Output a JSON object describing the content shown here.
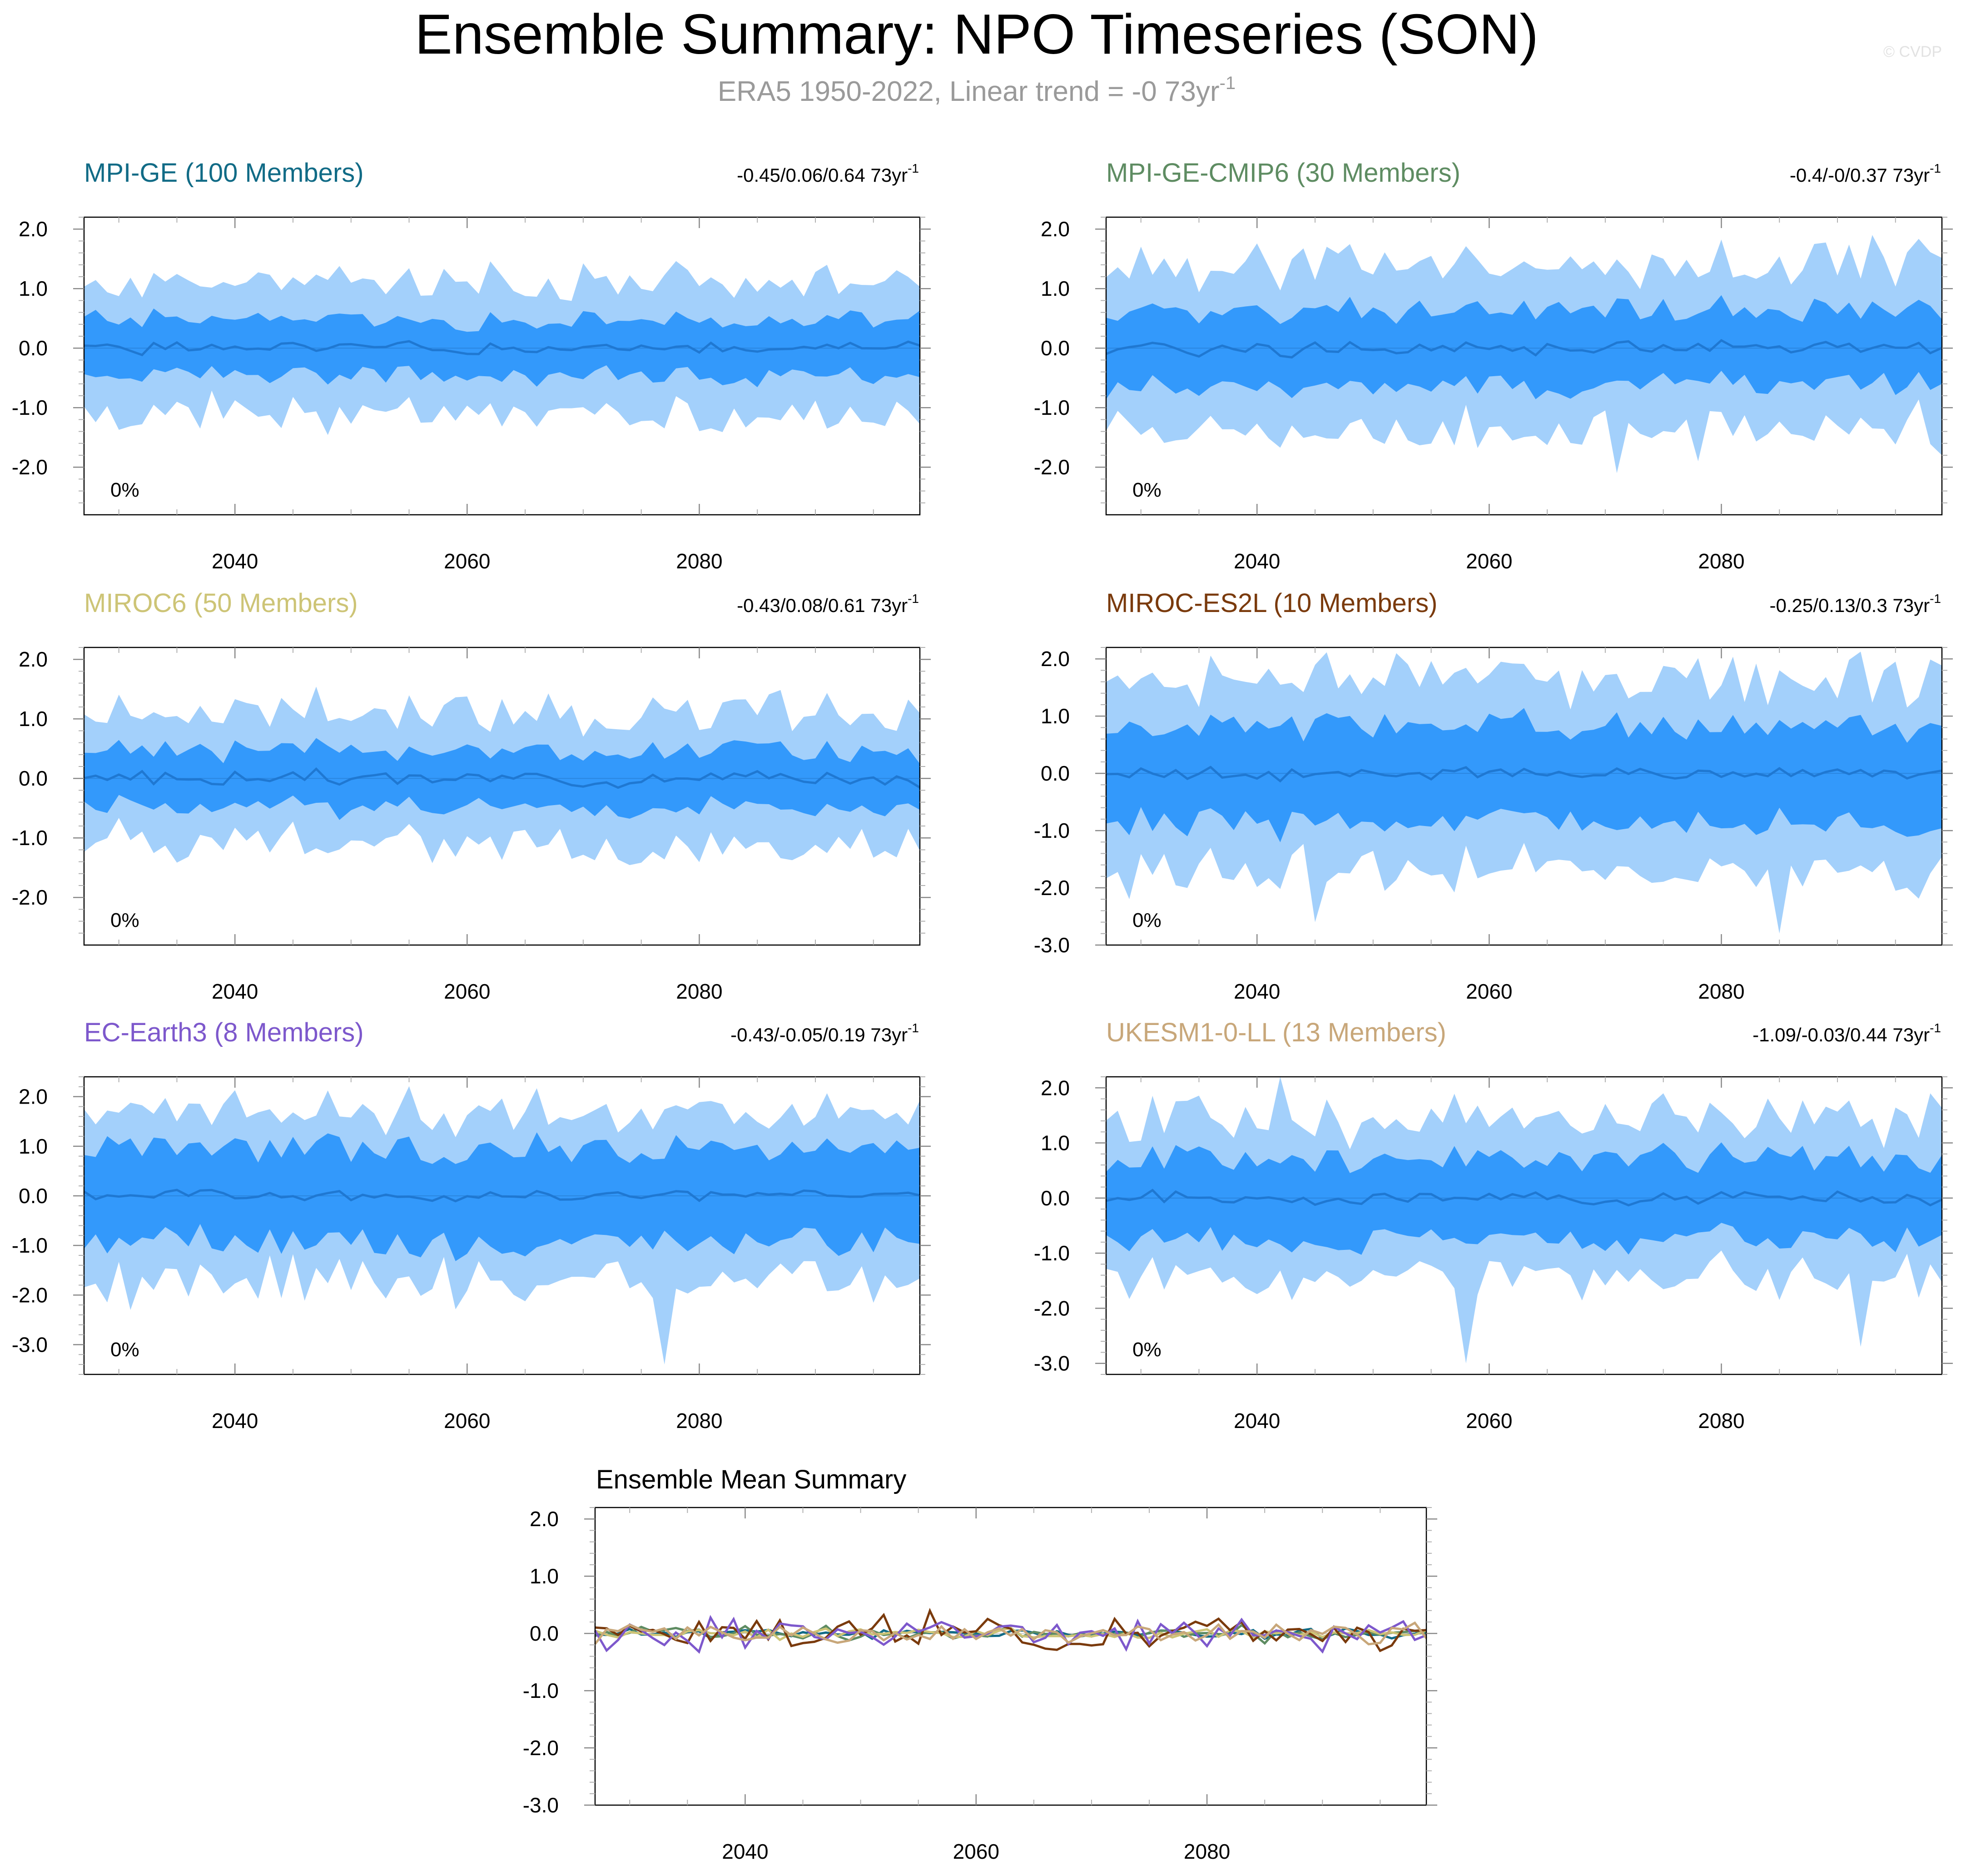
{
  "header": {
    "title": "Ensemble Summary: NPO Timeseries (SON)",
    "subtitle": "ERA5 1950-2022, Linear trend = -0 73yr",
    "subtitle_sup": "-1",
    "watermark": "© CVDP"
  },
  "colors": {
    "band_outer": "#a3d0fb",
    "band_inner": "#3399fb",
    "mean_line": "#1f78d2",
    "frame": "#000000",
    "minor_tick": "#b0b0b0"
  },
  "chart_data": [
    {
      "type": "area",
      "panel_title": "MPI-GE (100 Members)",
      "title_color": "#116b86",
      "trend_text": "-0.45/0.06/0.64 73yr",
      "trend_sup": "-1",
      "pct_label": "0%",
      "x_range": [
        2027,
        2099
      ],
      "xticks": [
        2040,
        2060,
        2080
      ],
      "xtick_labels": [
        "2040",
        "2060",
        "2080"
      ],
      "ylim": [
        -2.8,
        2.2
      ],
      "yticks": [
        -2,
        -1,
        0,
        1,
        2
      ],
      "ytick_labels": [
        "-2.0",
        "-1.0",
        "0.0",
        "1.0",
        "2.0"
      ],
      "amp": 0.45,
      "ext": 1.1,
      "extremes": [],
      "seed": 1
    },
    {
      "type": "area",
      "panel_title": "MPI-GE-CMIP6 (30 Members)",
      "title_color": "#5e8c62",
      "trend_text": "-0.4/-0/0.37 73yr",
      "trend_sup": "-1",
      "pct_label": "0%",
      "x_range": [
        2027,
        2099
      ],
      "xticks": [
        2040,
        2060,
        2080
      ],
      "xtick_labels": [
        "2040",
        "2060",
        "2080"
      ],
      "ylim": [
        -2.8,
        2.2
      ],
      "yticks": [
        -2,
        -1,
        0,
        1,
        2
      ],
      "ytick_labels": [
        "-2.0",
        "-1.0",
        "0.0",
        "1.0",
        "2.0"
      ],
      "amp": 0.6,
      "ext": 1.3,
      "extremes": [
        [
          2071,
          -2.1
        ],
        [
          2078,
          -1.9
        ],
        [
          2093,
          1.9
        ],
        [
          2099,
          -1.8
        ]
      ],
      "seed": 2
    },
    {
      "type": "area",
      "panel_title": "MIROC6 (50 Members)",
      "title_color": "#cdc476",
      "trend_text": "-0.43/0.08/0.61 73yr",
      "trend_sup": "-1",
      "pct_label": "0%",
      "x_range": [
        2027,
        2099
      ],
      "xticks": [
        2040,
        2060,
        2080
      ],
      "xtick_labels": [
        "2040",
        "2060",
        "2080"
      ],
      "ylim": [
        -2.8,
        2.2
      ],
      "yticks": [
        -2,
        -1,
        0,
        1,
        2
      ],
      "ytick_labels": [
        "-2.0",
        "-1.0",
        "0.0",
        "1.0",
        "2.0"
      ],
      "amp": 0.45,
      "ext": 1.1,
      "extremes": [],
      "seed": 3
    },
    {
      "type": "area",
      "panel_title": "MIROC-ES2L (10 Members)",
      "title_color": "#7a3a0c",
      "trend_text": "-0.25/0.13/0.3 73yr",
      "trend_sup": "-1",
      "pct_label": "0%",
      "x_range": [
        2027,
        2099
      ],
      "xticks": [
        2040,
        2060,
        2080
      ],
      "xtick_labels": [
        "2040",
        "2060",
        "2080"
      ],
      "ylim": [
        -3.0,
        2.2
      ],
      "yticks": [
        -3,
        -2,
        -1,
        0,
        1,
        2
      ],
      "ytick_labels": [
        "-3.0",
        "-2.0",
        "-1.0",
        "0.0",
        "1.0",
        "2.0"
      ],
      "amp": 0.8,
      "ext": 1.4,
      "extremes": [
        [
          2052,
          2.1
        ],
        [
          2085,
          -2.8
        ],
        [
          2045,
          -2.6
        ],
        [
          2078,
          -1.9
        ]
      ],
      "seed": 4
    },
    {
      "type": "area",
      "panel_title": "EC-Earth3 (8 Members)",
      "title_color": "#7d58cc",
      "trend_text": "-0.43/-0.05/0.19 73yr",
      "trend_sup": "-1",
      "pct_label": "0%",
      "x_range": [
        2027,
        2099
      ],
      "xticks": [
        2040,
        2060,
        2080
      ],
      "xtick_labels": [
        "2040",
        "2060",
        "2080"
      ],
      "ylim": [
        -3.6,
        2.4
      ],
      "yticks": [
        -3,
        -2,
        -1,
        0,
        1,
        2
      ],
      "ytick_labels": [
        "-3.0",
        "-2.0",
        "-1.0",
        "0.0",
        "1.0",
        "2.0"
      ],
      "amp": 0.9,
      "ext": 1.3,
      "extremes": [
        [
          2077,
          -3.4
        ],
        [
          2031,
          -2.3
        ],
        [
          2035,
          1.5
        ],
        [
          2049,
          1.6
        ]
      ],
      "seed": 5
    },
    {
      "type": "area",
      "panel_title": "UKESM1-0-LL (13 Members)",
      "title_color": "#c8a77a",
      "trend_text": "-1.09/-0.03/0.44 73yr",
      "trend_sup": "-1",
      "pct_label": "0%",
      "x_range": [
        2027,
        2099
      ],
      "xticks": [
        2040,
        2060,
        2080
      ],
      "xtick_labels": [
        "2040",
        "2060",
        "2080"
      ],
      "ylim": [
        -3.2,
        2.2
      ],
      "yticks": [
        -3,
        -2,
        -1,
        0,
        1,
        2
      ],
      "ytick_labels": [
        "-3.0",
        "-2.0",
        "-1.0",
        "0.0",
        "1.0",
        "2.0"
      ],
      "amp": 0.7,
      "ext": 1.2,
      "extremes": [
        [
          2042,
          2.2
        ],
        [
          2058,
          -3.0
        ],
        [
          2092,
          -2.7
        ],
        [
          2098,
          1.9
        ]
      ],
      "seed": 6
    },
    {
      "type": "line",
      "panel_title": "Ensemble Mean Summary",
      "x_range": [
        2027,
        2099
      ],
      "xticks": [
        2040,
        2060,
        2080
      ],
      "xtick_labels": [
        "2040",
        "2060",
        "2080"
      ],
      "ylim": [
        -3.0,
        2.2
      ],
      "yticks": [
        -3,
        -2,
        -1,
        0,
        1,
        2
      ],
      "ytick_labels": [
        "-3.0",
        "-2.0",
        "-1.0",
        "0.0",
        "1.0",
        "2.0"
      ],
      "series": [
        {
          "color": "#116b86",
          "amp": 0.08,
          "seed": 11
        },
        {
          "color": "#5e8c62",
          "amp": 0.12,
          "seed": 12
        },
        {
          "color": "#cdc476",
          "amp": 0.09,
          "seed": 13
        },
        {
          "color": "#7a3a0c",
          "amp": 0.28,
          "seed": 14
        },
        {
          "color": "#7d58cc",
          "amp": 0.24,
          "seed": 15
        },
        {
          "color": "#c8a77a",
          "amp": 0.18,
          "seed": 16
        }
      ]
    }
  ]
}
